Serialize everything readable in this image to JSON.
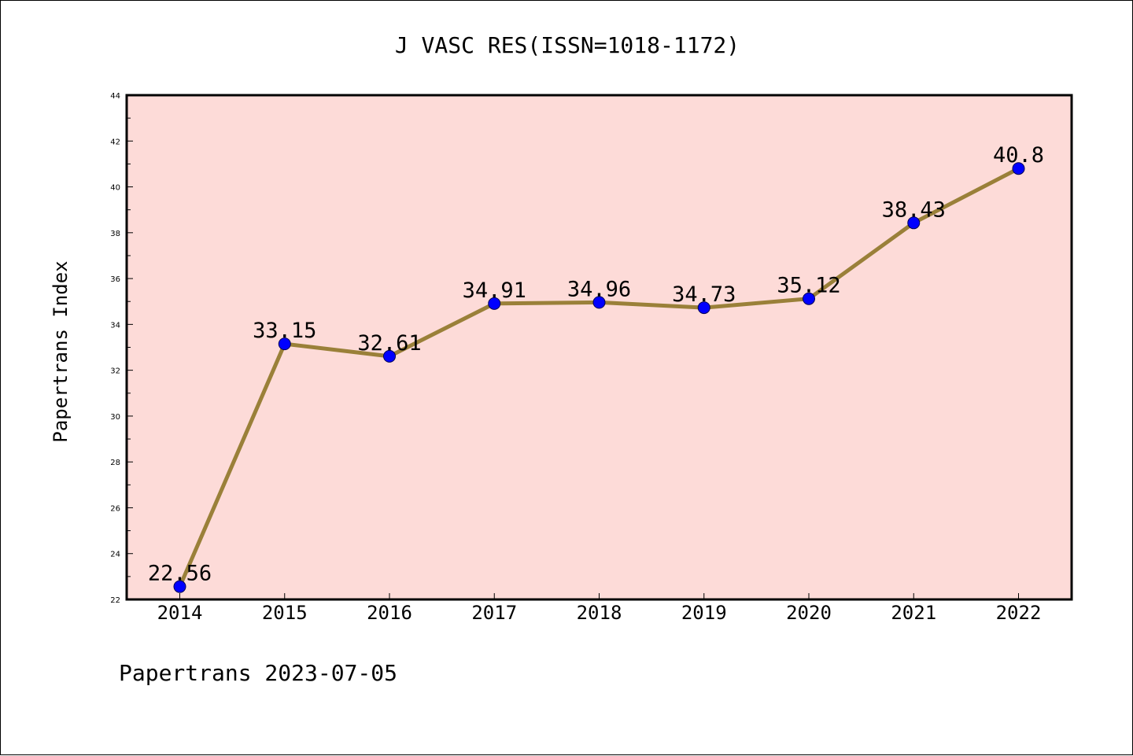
{
  "chart_data": {
    "type": "line",
    "title": "J VASC RES(ISSN=1018-1172)",
    "ylabel": "Papertrans Index",
    "xlabel": "",
    "footer": "Papertrans 2023-07-05",
    "categories": [
      "2014",
      "2015",
      "2016",
      "2017",
      "2018",
      "2019",
      "2020",
      "2021",
      "2022"
    ],
    "series": [
      {
        "values": [
          22.56,
          33.15,
          32.61,
          34.91,
          34.96,
          34.73,
          35.12,
          38.43,
          40.8
        ],
        "data_labels": [
          "22.56",
          "33.15",
          "32.61",
          "34.91",
          "34.96",
          "34.73",
          "35.12",
          "38.43",
          "40.8"
        ]
      }
    ],
    "ylim": [
      22,
      44
    ],
    "y_ticks": [
      "22",
      "24",
      "26",
      "28",
      "30",
      "32",
      "34",
      "36",
      "38",
      "40",
      "42",
      "44"
    ],
    "grid": false,
    "legend": "none",
    "colors": {
      "plot_background": "#fddbd8",
      "line": "#9a8039",
      "marker": "#0000ff",
      "axes": "#000000"
    }
  }
}
